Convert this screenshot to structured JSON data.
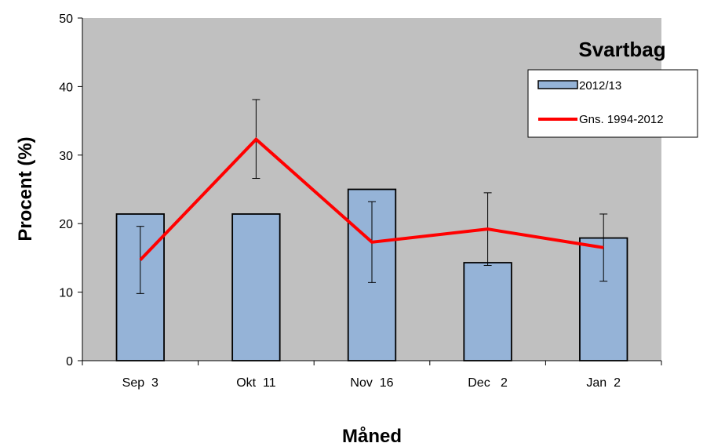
{
  "chart_data": {
    "type": "bar",
    "title": "Svartbag",
    "xlabel": "Måned",
    "ylabel": "Procent (%)",
    "ylim": [
      0,
      50
    ],
    "yticks": [
      0,
      10,
      20,
      30,
      40,
      50
    ],
    "grid": false,
    "legend_position": "top-right",
    "categories": [
      "Sep  3",
      "Okt  11",
      "Nov  16",
      "Dec   2",
      "Jan  2"
    ],
    "series": [
      {
        "name": "2012/13",
        "type": "bar",
        "color": "#95b3d7",
        "values": [
          21.4,
          21.4,
          25.0,
          14.3,
          17.9
        ]
      },
      {
        "name": "Gns. 1994-2012",
        "type": "line",
        "color": "#ff0000",
        "values": [
          14.7,
          32.3,
          17.3,
          19.2,
          16.5
        ],
        "error_low": [
          9.8,
          26.6,
          11.4,
          13.9,
          11.6
        ],
        "error_high": [
          19.6,
          38.1,
          23.2,
          24.5,
          21.4
        ]
      }
    ],
    "plot_background": "#c0c0c0"
  }
}
